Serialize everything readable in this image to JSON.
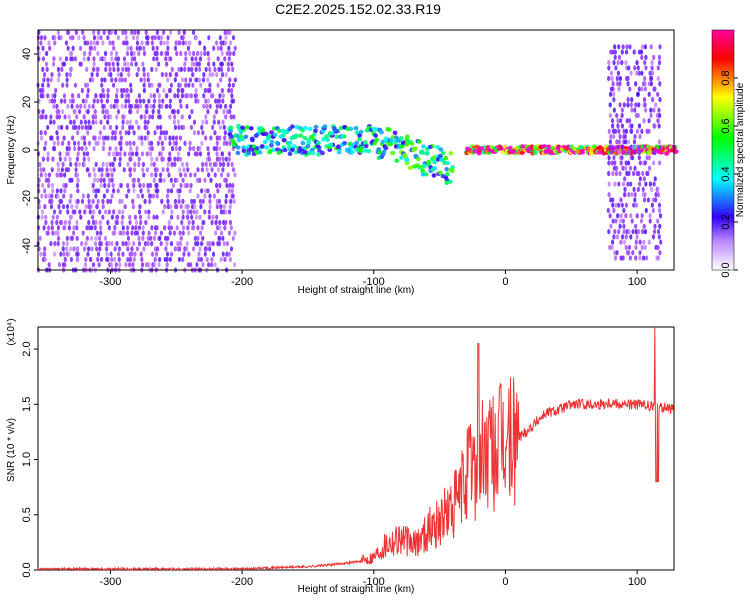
{
  "title": "C2E2.2025.152.02.33.R19",
  "chart_data": [
    {
      "type": "heatmap",
      "xlabel": "Height of straight line (km)",
      "ylabel": "Frequency (Hz)",
      "xlim": [
        -355,
        128
      ],
      "ylim": [
        -50,
        50
      ],
      "xticks": [
        -300,
        -200,
        -100,
        0,
        100
      ],
      "xtick_labels": [
        "-300",
        "-200",
        "-100",
        "0",
        "100"
      ],
      "yticks": [
        -40,
        -20,
        0,
        20,
        40
      ],
      "ytick_labels": [
        "-40",
        "-20",
        "0",
        "20",
        "40"
      ],
      "colorbar": {
        "label": "Normalized spectral amplitude",
        "range": [
          0,
          1
        ],
        "ticks": [
          0.0,
          0.2,
          0.4,
          0.6,
          0.8
        ],
        "tick_labels": [
          "0.0",
          "0.2",
          "0.4",
          "0.6",
          "0.8"
        ],
        "colors": [
          "#ffffff",
          "#9933ff",
          "#3300ff",
          "#00ffff",
          "#00ff00",
          "#ffff00",
          "#ff0000",
          "#ff00cc"
        ]
      },
      "regions": [
        {
          "name": "noise",
          "x": [
            -355,
            -205
          ],
          "freq": [
            -50,
            50
          ],
          "amp": 0.18
        },
        {
          "name": "band",
          "x": [
            -210,
            -100
          ],
          "freq_center": [
            4,
            4
          ],
          "freq_width": 12,
          "amp": 0.45
        },
        {
          "name": "dispersed",
          "x": [
            -100,
            -40
          ],
          "freq_center": [
            4,
            -8
          ],
          "freq_width": 14,
          "amp": 0.5
        },
        {
          "name": "tone",
          "x": [
            -30,
            128
          ],
          "freq_center": [
            0,
            0
          ],
          "freq_width": 3,
          "amp": 0.95
        },
        {
          "name": "noise",
          "x": [
            78,
            118
          ],
          "freq": [
            -45,
            45
          ],
          "amp": 0.2
        }
      ]
    },
    {
      "type": "line",
      "xlabel": "Height of straight line (km)",
      "ylabel": "SNR (10 * v/v)",
      "y_multiplier": "(x10⁴)",
      "xlim": [
        -355,
        128
      ],
      "ylim": [
        0,
        2.2
      ],
      "xticks": [
        -300,
        -200,
        -100,
        0,
        100
      ],
      "xtick_labels": [
        "-300",
        "-200",
        "-100",
        "0",
        "100"
      ],
      "yticks": [
        0.0,
        0.5,
        1.0,
        1.5,
        2.0
      ],
      "ytick_labels": [
        "0.0",
        "0.5",
        "1.0",
        "1.5",
        "2.0"
      ],
      "color": "#ee3333",
      "series": [
        {
          "x": [
            -355,
            -300,
            -250,
            -200,
            -180,
            -150,
            -130,
            -110,
            -100,
            -90,
            -80,
            -70,
            -60,
            -50,
            -40,
            -35,
            -30,
            -25,
            -20,
            -15,
            -10,
            -5,
            0,
            5,
            10,
            20,
            30,
            40,
            50,
            60,
            70,
            80,
            90,
            100,
            110,
            115,
            120,
            128
          ],
          "values": [
            0.01,
            0.01,
            0.01,
            0.01,
            0.02,
            0.03,
            0.05,
            0.08,
            0.12,
            0.25,
            0.3,
            0.22,
            0.35,
            0.45,
            0.55,
            0.65,
            0.85,
            0.95,
            1.0,
            1.05,
            1.05,
            1.1,
            1.15,
            1.15,
            1.2,
            1.3,
            1.42,
            1.45,
            1.5,
            1.5,
            1.5,
            1.52,
            1.5,
            1.5,
            1.48,
            1.48,
            1.47,
            1.45
          ]
        }
      ]
    }
  ]
}
